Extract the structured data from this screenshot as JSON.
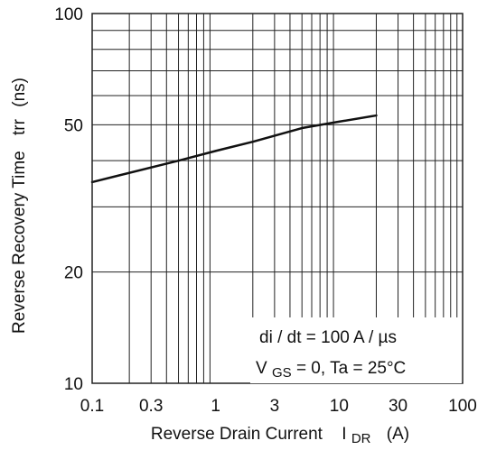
{
  "chart_data": {
    "type": "line",
    "title": "",
    "xlabel": "Reverse Drain Current",
    "xlabel_symbol": "I",
    "xlabel_symbol_subscript": "DR",
    "xlabel_unit": "(A)",
    "ylabel": "Reverse Recovery Time",
    "ylabel_symbol": "trr",
    "ylabel_unit": "(ns)",
    "x_scale": "log",
    "y_scale": "log",
    "xlim": [
      0.1,
      100
    ],
    "ylim": [
      10,
      100
    ],
    "x_tick_values": [
      0.1,
      0.3,
      1,
      3,
      10,
      30,
      100
    ],
    "x_tick_labels": [
      "0.1",
      "0.3",
      "1",
      "3",
      "10",
      "30",
      "100"
    ],
    "y_tick_values": [
      10,
      20,
      50,
      100
    ],
    "y_tick_labels": [
      "10",
      "20",
      "50",
      "100"
    ],
    "grid": true,
    "series": [
      {
        "x": [
          0.1,
          0.5,
          1,
          2,
          5,
          10,
          20
        ],
        "y": [
          35,
          40,
          42.5,
          45,
          49,
          51,
          53
        ]
      }
    ],
    "annotations": [
      {
        "text": "di / dt = 100 A / µs"
      },
      {
        "parts": [
          "V",
          "GS",
          " = 0, Ta = 25°C"
        ]
      }
    ],
    "colors": {
      "line": "#111111",
      "grid": "#222222",
      "background": "#ffffff"
    }
  }
}
